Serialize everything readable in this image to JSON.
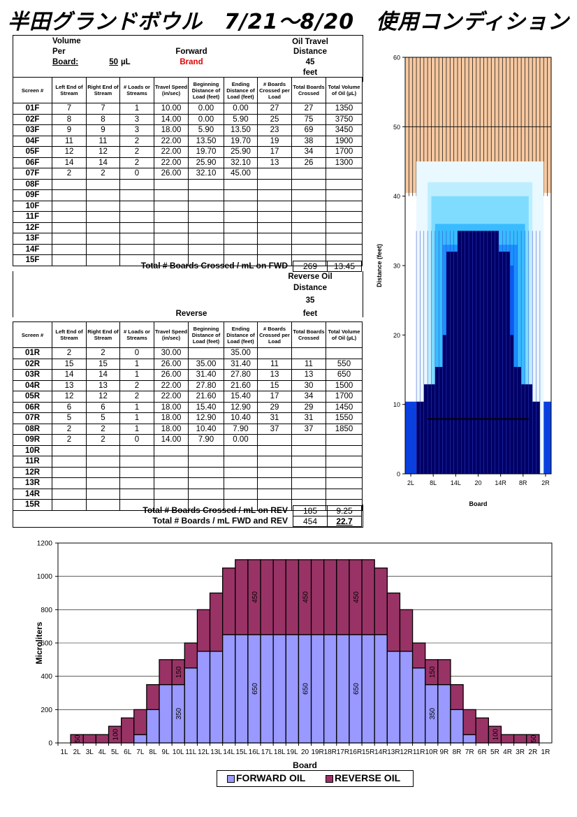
{
  "title": "半田グランドボウル　7/21～8/20　使用コンディション",
  "forward_info": {
    "volume_line1": "Volume",
    "volume_line2": "Per",
    "board_label": "Board:",
    "board_value": "50",
    "unit": "µL",
    "direction": "Forward",
    "brand": "Brand",
    "oil_travel_1": "Oil Travel",
    "oil_travel_2": "Distance",
    "distance": "45",
    "feet": "feet"
  },
  "reverse_info": {
    "direction": "Reverse",
    "oil_1": "Reverse Oil",
    "oil_2": "Distance",
    "distance": "35",
    "feet": "feet"
  },
  "headers": [
    "Screen #",
    "Left End of Stream",
    "Right End of Stream",
    "# Loads or Streams",
    "Travel Speed (in/sec)",
    "Beginning Distance of Load (feet)",
    "Ending Distance of Load (feet)",
    "# Boards Crossed per Load",
    "Total Boards Crossed",
    "Total Volume of Oil (µL)"
  ],
  "forward_rows": [
    [
      "01F",
      "7",
      "7",
      "1",
      "10.00",
      "0.00",
      "0.00",
      "27",
      "27",
      "1350"
    ],
    [
      "02F",
      "8",
      "8",
      "3",
      "14.00",
      "0.00",
      "5.90",
      "25",
      "75",
      "3750"
    ],
    [
      "03F",
      "9",
      "9",
      "3",
      "18.00",
      "5.90",
      "13.50",
      "23",
      "69",
      "3450"
    ],
    [
      "04F",
      "11",
      "11",
      "2",
      "22.00",
      "13.50",
      "19.70",
      "19",
      "38",
      "1900"
    ],
    [
      "05F",
      "12",
      "12",
      "2",
      "22.00",
      "19.70",
      "25.90",
      "17",
      "34",
      "1700"
    ],
    [
      "06F",
      "14",
      "14",
      "2",
      "22.00",
      "25.90",
      "32.10",
      "13",
      "26",
      "1300"
    ],
    [
      "07F",
      "2",
      "2",
      "0",
      "26.00",
      "32.10",
      "45.00",
      "",
      "",
      ""
    ],
    [
      "08F",
      "",
      "",
      "",
      "",
      "",
      "",
      "",
      "",
      ""
    ],
    [
      "09F",
      "",
      "",
      "",
      "",
      "",
      "",
      "",
      "",
      ""
    ],
    [
      "10F",
      "",
      "",
      "",
      "",
      "",
      "",
      "",
      "",
      ""
    ],
    [
      "11F",
      "",
      "",
      "",
      "",
      "",
      "",
      "",
      "",
      ""
    ],
    [
      "12F",
      "",
      "",
      "",
      "",
      "",
      "",
      "",
      "",
      ""
    ],
    [
      "13F",
      "",
      "",
      "",
      "",
      "",
      "",
      "",
      "",
      ""
    ],
    [
      "14F",
      "",
      "",
      "",
      "",
      "",
      "",
      "",
      "",
      ""
    ],
    [
      "15F",
      "",
      "",
      "",
      "",
      "",
      "",
      "",
      "",
      ""
    ]
  ],
  "forward_total": {
    "label": "Total # Boards Crossed / mL on FWD",
    "boards": "269",
    "ml": "13.45"
  },
  "reverse_rows": [
    [
      "01R",
      "2",
      "2",
      "0",
      "30.00",
      "",
      "35.00",
      "",
      "",
      ""
    ],
    [
      "02R",
      "15",
      "15",
      "1",
      "26.00",
      "35.00",
      "31.40",
      "11",
      "11",
      "550"
    ],
    [
      "03R",
      "14",
      "14",
      "1",
      "26.00",
      "31.40",
      "27.80",
      "13",
      "13",
      "650"
    ],
    [
      "04R",
      "13",
      "13",
      "2",
      "22.00",
      "27.80",
      "21.60",
      "15",
      "30",
      "1500"
    ],
    [
      "05R",
      "12",
      "12",
      "2",
      "22.00",
      "21.60",
      "15.40",
      "17",
      "34",
      "1700"
    ],
    [
      "06R",
      "6",
      "6",
      "1",
      "18.00",
      "15.40",
      "12.90",
      "29",
      "29",
      "1450"
    ],
    [
      "07R",
      "5",
      "5",
      "1",
      "18.00",
      "12.90",
      "10.40",
      "31",
      "31",
      "1550"
    ],
    [
      "08R",
      "2",
      "2",
      "1",
      "18.00",
      "10.40",
      "7.90",
      "37",
      "37",
      "1850"
    ],
    [
      "09R",
      "2",
      "2",
      "0",
      "14.00",
      "7.90",
      "0.00",
      "",
      "",
      ""
    ],
    [
      "10R",
      "",
      "",
      "",
      "",
      "",
      "",
      "",
      "",
      ""
    ],
    [
      "11R",
      "",
      "",
      "",
      "",
      "",
      "",
      "",
      "",
      ""
    ],
    [
      "12R",
      "",
      "",
      "",
      "",
      "",
      "",
      "",
      "",
      ""
    ],
    [
      "13R",
      "",
      "",
      "",
      "",
      "",
      "",
      "",
      "",
      ""
    ],
    [
      "14R",
      "",
      "",
      "",
      "",
      "",
      "",
      "",
      "",
      ""
    ],
    [
      "15R",
      "",
      "",
      "",
      "",
      "",
      "",
      "",
      "",
      ""
    ]
  ],
  "reverse_total": {
    "label": "Total # Boards Crossed / mL on REV",
    "boards": "185",
    "ml": "9.25"
  },
  "grand_total": {
    "label": "Total # Boards / mL FWD and REV",
    "boards": "454",
    "ml": "22.7"
  },
  "colors": {
    "forward": "#9999ff",
    "reverse": "#993366",
    "dark": "#000066",
    "brand": "#e00000"
  },
  "chart_data": [
    {
      "type": "heatmap",
      "xlabel": "Board",
      "ylabel": "Distance (feet)",
      "ylim": [
        0,
        60
      ],
      "yticks": [
        "0",
        "10",
        "20",
        "30",
        "40",
        "50",
        "60"
      ],
      "xticks": [
        "2L",
        "8L",
        "14L",
        "20",
        "14R",
        "8R",
        "2R"
      ],
      "oil_distance": 45,
      "reverse_distance": 35
    },
    {
      "type": "bar",
      "stacked": true,
      "xlabel": "Board",
      "ylabel": "Microliters",
      "ylim": [
        0,
        1200
      ],
      "yticks": [
        "0",
        "200",
        "400",
        "600",
        "800",
        "1000",
        "1200"
      ],
      "categories": [
        "1L",
        "2L",
        "3L",
        "4L",
        "5L",
        "6L",
        "7L",
        "8L",
        "9L",
        "10L",
        "11L",
        "12L",
        "13L",
        "14L",
        "15L",
        "16L",
        "17L",
        "18L",
        "19L",
        "20",
        "19R",
        "18R",
        "17R",
        "16R",
        "15R",
        "14R",
        "13R",
        "12R",
        "11R",
        "10R",
        "9R",
        "8R",
        "7R",
        "6R",
        "5R",
        "4R",
        "3R",
        "2R",
        "1R"
      ],
      "series": [
        {
          "name": "FORWARD OIL",
          "values": [
            0,
            0,
            0,
            0,
            0,
            0,
            50,
            200,
            350,
            350,
            450,
            550,
            550,
            650,
            650,
            650,
            650,
            650,
            650,
            650,
            650,
            650,
            650,
            650,
            650,
            650,
            550,
            550,
            450,
            350,
            350,
            200,
            50,
            0,
            0,
            0,
            0,
            0,
            0
          ]
        },
        {
          "name": "REVERSE OIL",
          "values": [
            0,
            50,
            50,
            50,
            100,
            150,
            150,
            150,
            150,
            150,
            150,
            250,
            350,
            400,
            450,
            450,
            450,
            450,
            450,
            450,
            450,
            450,
            450,
            450,
            450,
            400,
            350,
            250,
            150,
            150,
            150,
            150,
            150,
            150,
            100,
            50,
            50,
            50,
            0
          ]
        }
      ],
      "annotations": [
        {
          "series": "REVERSE OIL",
          "index": 1,
          "text": "50"
        },
        {
          "series": "REVERSE OIL",
          "index": 4,
          "text": "100"
        },
        {
          "series": "REVERSE OIL",
          "index": 9,
          "text": "150"
        },
        {
          "series": "REVERSE OIL",
          "index": 15,
          "text": "450"
        },
        {
          "series": "REVERSE OIL",
          "index": 19,
          "text": "450"
        },
        {
          "series": "REVERSE OIL",
          "index": 23,
          "text": "450"
        },
        {
          "series": "REVERSE OIL",
          "index": 29,
          "text": "150"
        },
        {
          "series": "REVERSE OIL",
          "index": 34,
          "text": "100"
        },
        {
          "series": "REVERSE OIL",
          "index": 37,
          "text": "50"
        },
        {
          "series": "FORWARD OIL",
          "index": 9,
          "text": "350"
        },
        {
          "series": "FORWARD OIL",
          "index": 15,
          "text": "650"
        },
        {
          "series": "FORWARD OIL",
          "index": 19,
          "text": "650"
        },
        {
          "series": "FORWARD OIL",
          "index": 23,
          "text": "650"
        },
        {
          "series": "FORWARD OIL",
          "index": 29,
          "text": "350"
        }
      ]
    }
  ]
}
